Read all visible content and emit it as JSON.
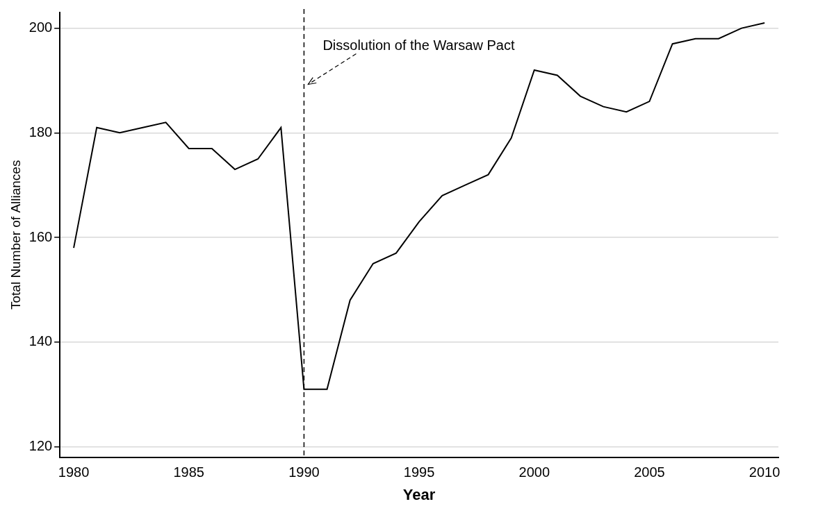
{
  "chart_data": {
    "type": "line",
    "x_label": "Year",
    "y_label": "Total Number of Alliances",
    "x": [
      1980,
      1981,
      1982,
      1983,
      1984,
      1985,
      1986,
      1987,
      1988,
      1989,
      1990,
      1991,
      1992,
      1993,
      1994,
      1995,
      1996,
      1997,
      1998,
      1999,
      2000,
      2001,
      2002,
      2003,
      2004,
      2005,
      2006,
      2007,
      2008,
      2009,
      2010
    ],
    "values": [
      158,
      181,
      180,
      181,
      182,
      177,
      177,
      173,
      175,
      181,
      131,
      131,
      148,
      155,
      157,
      163,
      168,
      170,
      172,
      179,
      192,
      191,
      187,
      185,
      184,
      186,
      197,
      198,
      198,
      200,
      201
    ],
    "color": "#000000",
    "xlim": [
      1979.4,
      2010.6
    ],
    "xticks": [
      1980,
      1985,
      1990,
      1995,
      2000,
      2005,
      2010
    ],
    "ylim": [
      118,
      203
    ],
    "yticks": [
      120,
      140,
      160,
      180,
      200
    ],
    "grid": true,
    "annotations": [
      {
        "text": "Dissolution of the Warsaw Pact",
        "x": 1990,
        "y": 189
      }
    ]
  }
}
